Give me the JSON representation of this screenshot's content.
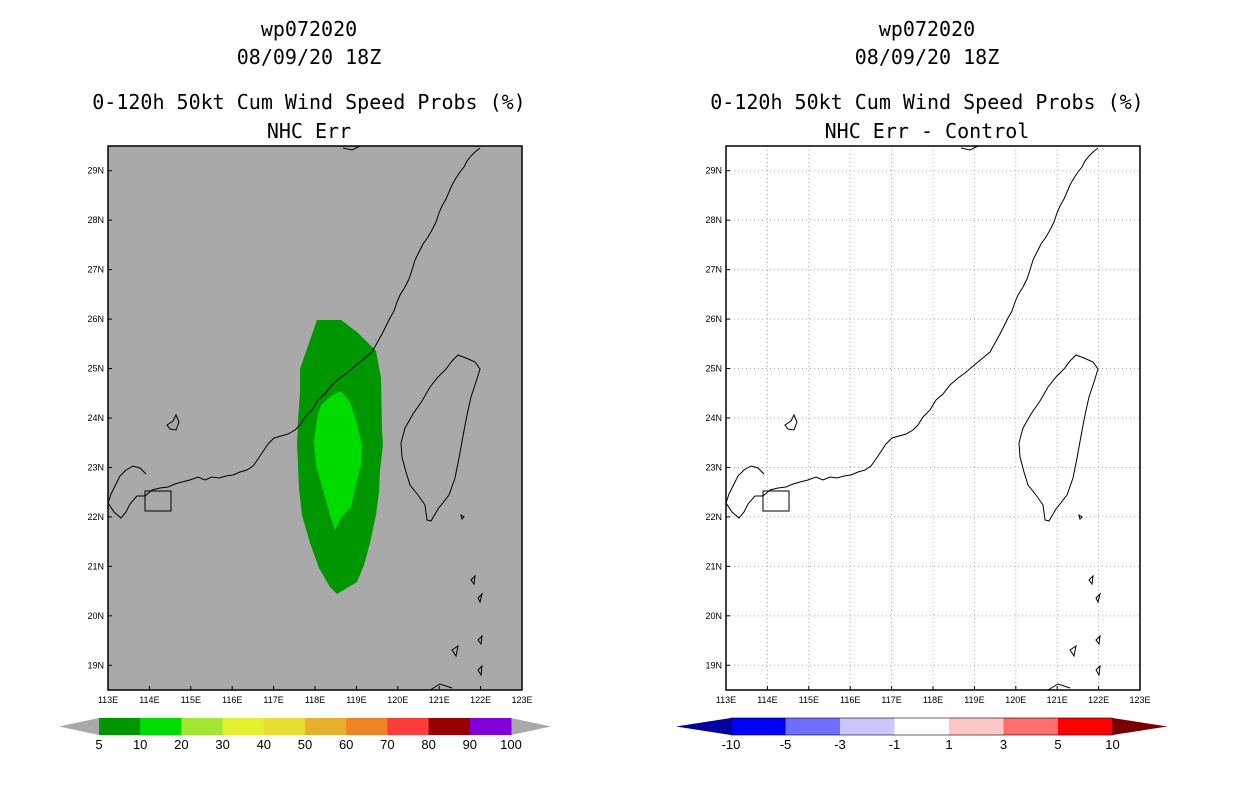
{
  "left_panel": {
    "title_storm": "wp072020",
    "title_time": "08/09/20 18Z",
    "title_product": "0-120h 50kt Cum Wind Speed Probs (%)",
    "title_subtitle": "NHC Err",
    "background_color": "#a9a9a9",
    "gridlines": false,
    "probability_contours": [
      {
        "label": "5-10%",
        "color": "#009600"
      },
      {
        "label": "10-20%",
        "color": "#00dc00"
      }
    ],
    "colorbar": {
      "labels": [
        "5",
        "10",
        "20",
        "30",
        "40",
        "50",
        "60",
        "70",
        "80",
        "90",
        "100"
      ],
      "colors": [
        "#009600",
        "#00dc00",
        "#a0e632",
        "#e6f032",
        "#e6dc32",
        "#e6af2d",
        "#f08228",
        "#fa3c3c",
        "#960000",
        "#8200dc"
      ],
      "end_color": "#a9a9a9"
    }
  },
  "right_panel": {
    "title_storm": "wp072020",
    "title_time": "08/09/20 18Z",
    "title_product": "0-120h 50kt Cum Wind Speed Probs (%)",
    "title_subtitle": "NHC Err - Control",
    "background_color": "#ffffff",
    "gridlines": true,
    "colorbar": {
      "labels": [
        "-10",
        "-5",
        "-3",
        "-1",
        "1",
        "3",
        "5",
        "10"
      ],
      "colors": [
        "#0000ff",
        "#6e6eff",
        "#c8c8ff",
        "#ffffff",
        "#ffc8c8",
        "#ff6e6e",
        "#ff0000"
      ],
      "end_low_color": "#0000a0",
      "end_high_color": "#780000"
    }
  },
  "map": {
    "lon_labels": [
      "113E",
      "114E",
      "115E",
      "116E",
      "117E",
      "118E",
      "119E",
      "120E",
      "121E",
      "122E",
      "123E"
    ],
    "lat_labels": [
      "19N",
      "20N",
      "21N",
      "22N",
      "23N",
      "24N",
      "25N",
      "26N",
      "27N",
      "28N",
      "29N"
    ],
    "lon_range": [
      113,
      123
    ],
    "lat_range": [
      18.5,
      29.5
    ]
  }
}
